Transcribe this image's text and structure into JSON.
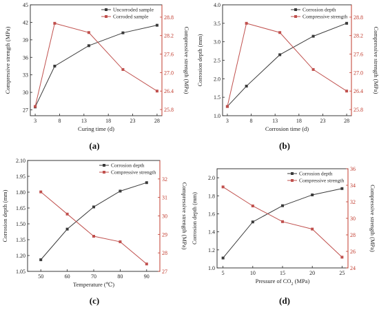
{
  "colors": {
    "series1": "#3a3a3a",
    "series2": "#c0504d",
    "axis_left": "#222222",
    "axis_right": "#c0392b"
  },
  "chart_data": [
    {
      "panel_label": "(a)",
      "type": "line",
      "xlabel": "Curing time (d)",
      "ylabel_left": "Compressive strength (MPa)",
      "ylabel_right": "Compressive strength (MPa)",
      "xlim": [
        2,
        29
      ],
      "x_ticks": [
        3,
        8,
        13,
        18,
        23,
        28
      ],
      "ylim_left": [
        26,
        45
      ],
      "y_ticks_left": [
        27,
        30,
        33,
        36,
        39,
        42,
        45
      ],
      "ylim_right": [
        25.6,
        29.2
      ],
      "y_ticks_right": [
        25.8,
        26.4,
        27.0,
        27.6,
        28.2,
        28.8
      ],
      "legend_position": "top-right",
      "series": [
        {
          "name": "Uncorroded sample",
          "axis": "left",
          "x": [
            3,
            7,
            14,
            21,
            28
          ],
          "y": [
            27.5,
            34.5,
            38.0,
            40.2,
            41.5
          ]
        },
        {
          "name": "Corroded sample",
          "axis": "right",
          "x": [
            3,
            7,
            14,
            21,
            28
          ],
          "y": [
            25.9,
            28.6,
            28.3,
            27.1,
            26.4
          ]
        }
      ]
    },
    {
      "panel_label": "(b)",
      "type": "line",
      "xlabel": "Corrosion time (d)",
      "ylabel_left": "Corrosion depth (mm)",
      "ylabel_right": "Compressive strength (MPa)",
      "xlim": [
        2,
        29
      ],
      "x_ticks": [
        3,
        8,
        13,
        18,
        23,
        28
      ],
      "ylim_left": [
        1.0,
        4.0
      ],
      "y_ticks_left": [
        1.0,
        1.5,
        2.0,
        2.5,
        3.0,
        3.5,
        4.0
      ],
      "ylim_right": [
        25.6,
        29.2
      ],
      "y_ticks_right": [
        25.8,
        26.4,
        27.0,
        27.6,
        28.2,
        28.8
      ],
      "legend_position": "top-right",
      "series": [
        {
          "name": "Corrosion depth",
          "axis": "left",
          "x": [
            3,
            7,
            14,
            21,
            28
          ],
          "y": [
            1.25,
            1.8,
            2.65,
            3.15,
            3.5
          ]
        },
        {
          "name": "Compressive strength",
          "axis": "right",
          "x": [
            3,
            7,
            14,
            21,
            28
          ],
          "y": [
            25.9,
            28.6,
            28.3,
            27.1,
            26.4
          ]
        }
      ]
    },
    {
      "panel_label": "(c)",
      "type": "line",
      "xlabel": "Temperature (℃)",
      "ylabel_left": "Corrosion depth (mm)",
      "ylabel_right": "Compressive strength (MPa)",
      "xlim": [
        45,
        95
      ],
      "x_ticks": [
        50,
        60,
        70,
        80,
        90
      ],
      "ylim_left": [
        1.05,
        2.1
      ],
      "y_ticks_left": [
        1.05,
        1.2,
        1.35,
        1.5,
        1.65,
        1.8,
        1.95,
        2.1
      ],
      "ylim_right": [
        27,
        33
      ],
      "y_ticks_right": [
        27,
        28,
        29,
        30,
        31,
        32
      ],
      "legend_position": "top-right",
      "series": [
        {
          "name": "Corrosion depth",
          "axis": "left",
          "x": [
            50,
            60,
            70,
            80,
            90
          ],
          "y": [
            1.16,
            1.45,
            1.66,
            1.81,
            1.89
          ]
        },
        {
          "name": "Compressive strength",
          "axis": "right",
          "x": [
            50,
            60,
            70,
            80,
            90
          ],
          "y": [
            31.3,
            30.1,
            28.9,
            28.6,
            27.4
          ]
        }
      ]
    },
    {
      "panel_label": "(d)",
      "type": "line",
      "xlabel": "Pressure of CO",
      "xlabel_sub": "2",
      "xlabel_unit": " (MPa)",
      "ylabel_left": "Corrosion depth (mm)",
      "ylabel_right": "Compressive strength (MPa)",
      "xlim": [
        4,
        26
      ],
      "x_ticks": [
        5,
        10,
        15,
        20,
        25
      ],
      "ylim_left": [
        1.0,
        2.1
      ],
      "y_ticks_left": [
        1.0,
        1.2,
        1.4,
        1.6,
        1.8,
        2.0
      ],
      "ylim_right": [
        24,
        36
      ],
      "y_ticks_right": [
        24,
        26,
        28,
        30,
        32,
        34,
        36
      ],
      "legend_position": "top-right",
      "series": [
        {
          "name": "Corrosion depth",
          "axis": "left",
          "x": [
            5,
            10,
            15,
            20,
            25
          ],
          "y": [
            1.11,
            1.51,
            1.69,
            1.81,
            1.88
          ]
        },
        {
          "name": "Compressive strength",
          "axis": "right",
          "x": [
            5,
            10,
            15,
            20,
            25
          ],
          "y": [
            33.8,
            31.5,
            29.6,
            28.7,
            25.3
          ]
        }
      ]
    }
  ]
}
